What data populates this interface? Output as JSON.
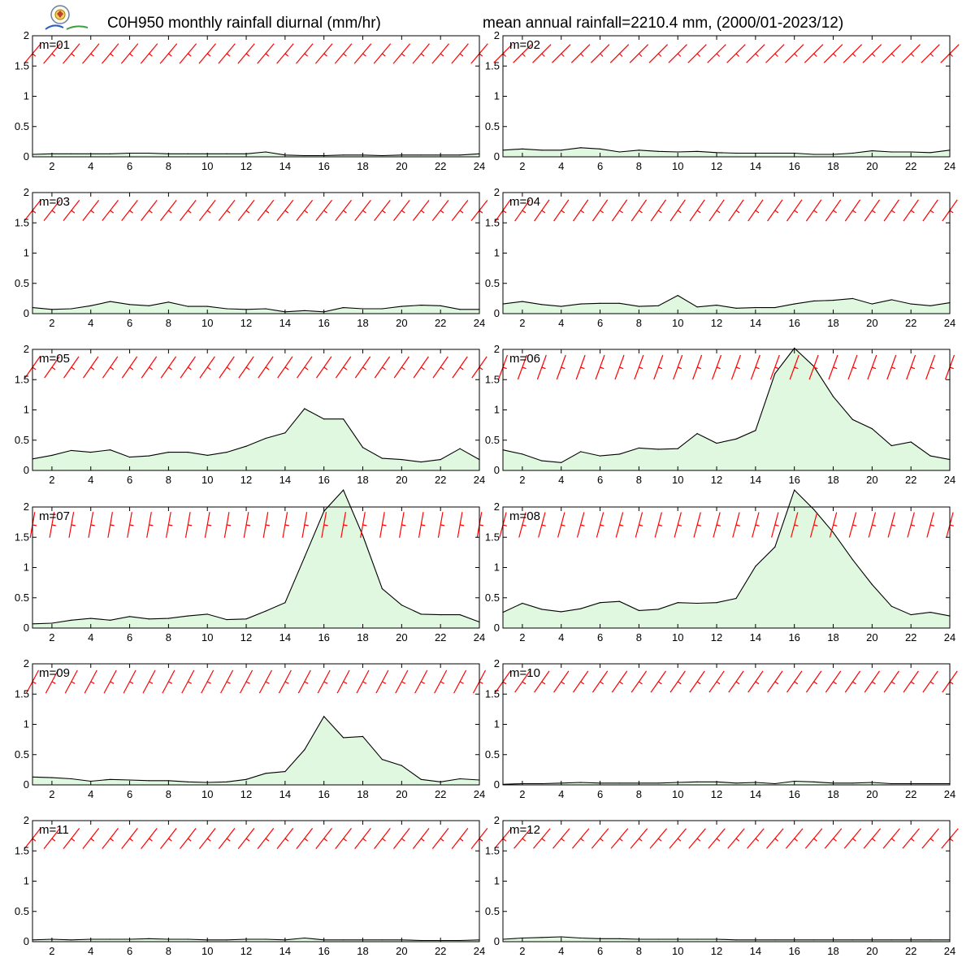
{
  "header": {
    "title_left": "C0H950 monthly rainfall diurnal (mm/hr)",
    "title_right": "mean annual rainfall=2210.4 mm, (2000/01-2023/12)"
  },
  "colors": {
    "fill": "#e0f8e0",
    "line": "#000000",
    "barb": "#ff0000"
  },
  "logo_icon": "lab-seal-logo",
  "chart_data": [
    {
      "type": "area",
      "label": "m=01",
      "x": [
        1,
        2,
        3,
        4,
        5,
        6,
        7,
        8,
        9,
        10,
        11,
        12,
        13,
        14,
        15,
        16,
        17,
        18,
        19,
        20,
        21,
        22,
        23,
        24
      ],
      "values": [
        0.04,
        0.05,
        0.05,
        0.05,
        0.05,
        0.06,
        0.06,
        0.05,
        0.05,
        0.05,
        0.05,
        0.05,
        0.08,
        0.03,
        0.02,
        0.02,
        0.03,
        0.03,
        0.02,
        0.03,
        0.03,
        0.03,
        0.03,
        0.05
      ],
      "xlim": [
        1,
        24
      ],
      "ylim": [
        0,
        2
      ],
      "xticks": [
        2,
        4,
        6,
        8,
        10,
        12,
        14,
        16,
        18,
        20,
        22,
        24
      ],
      "yticks": [
        0,
        0.5,
        1,
        1.5,
        2
      ],
      "barb_angle": -40
    },
    {
      "type": "area",
      "label": "m=02",
      "x": [
        1,
        2,
        3,
        4,
        5,
        6,
        7,
        8,
        9,
        10,
        11,
        12,
        13,
        14,
        15,
        16,
        17,
        18,
        19,
        20,
        21,
        22,
        23,
        24
      ],
      "values": [
        0.11,
        0.13,
        0.11,
        0.11,
        0.15,
        0.13,
        0.08,
        0.11,
        0.09,
        0.08,
        0.09,
        0.07,
        0.06,
        0.06,
        0.06,
        0.06,
        0.04,
        0.04,
        0.06,
        0.1,
        0.08,
        0.08,
        0.07,
        0.11
      ],
      "xlim": [
        1,
        24
      ],
      "ylim": [
        0,
        2
      ],
      "xticks": [
        2,
        4,
        6,
        8,
        10,
        12,
        14,
        16,
        18,
        20,
        22,
        24
      ],
      "yticks": [
        0,
        0.5,
        1,
        1.5,
        2
      ],
      "barb_angle": -45
    },
    {
      "type": "area",
      "label": "m=03",
      "x": [
        1,
        2,
        3,
        4,
        5,
        6,
        7,
        8,
        9,
        10,
        11,
        12,
        13,
        14,
        15,
        16,
        17,
        18,
        19,
        20,
        21,
        22,
        23,
        24
      ],
      "values": [
        0.1,
        0.07,
        0.08,
        0.13,
        0.2,
        0.15,
        0.13,
        0.19,
        0.12,
        0.12,
        0.08,
        0.07,
        0.08,
        0.03,
        0.05,
        0.03,
        0.1,
        0.08,
        0.08,
        0.12,
        0.14,
        0.13,
        0.07,
        0.07
      ],
      "xlim": [
        1,
        24
      ],
      "ylim": [
        0,
        2
      ],
      "xticks": [
        2,
        4,
        6,
        8,
        10,
        12,
        14,
        16,
        18,
        20,
        22,
        24
      ],
      "yticks": [
        0,
        0.5,
        1,
        1.5,
        2
      ],
      "barb_angle": -38
    },
    {
      "type": "area",
      "label": "m=04",
      "x": [
        1,
        2,
        3,
        4,
        5,
        6,
        7,
        8,
        9,
        10,
        11,
        12,
        13,
        14,
        15,
        16,
        17,
        18,
        19,
        20,
        21,
        22,
        23,
        24
      ],
      "values": [
        0.16,
        0.2,
        0.15,
        0.12,
        0.16,
        0.17,
        0.17,
        0.12,
        0.13,
        0.3,
        0.11,
        0.14,
        0.09,
        0.1,
        0.1,
        0.16,
        0.21,
        0.22,
        0.25,
        0.16,
        0.23,
        0.16,
        0.13,
        0.18
      ],
      "xlim": [
        1,
        24
      ],
      "ylim": [
        0,
        2
      ],
      "xticks": [
        2,
        4,
        6,
        8,
        10,
        12,
        14,
        16,
        18,
        20,
        22,
        24
      ],
      "yticks": [
        0,
        0.5,
        1,
        1.5,
        2
      ],
      "barb_angle": -35
    },
    {
      "type": "area",
      "label": "m=05",
      "x": [
        1,
        2,
        3,
        4,
        5,
        6,
        7,
        8,
        9,
        10,
        11,
        12,
        13,
        14,
        15,
        16,
        17,
        18,
        19,
        20,
        21,
        22,
        23,
        24
      ],
      "values": [
        0.19,
        0.25,
        0.33,
        0.3,
        0.34,
        0.22,
        0.24,
        0.3,
        0.3,
        0.25,
        0.3,
        0.4,
        0.53,
        0.62,
        1.02,
        0.85,
        0.85,
        0.38,
        0.2,
        0.18,
        0.14,
        0.18,
        0.36,
        0.18
      ],
      "xlim": [
        1,
        24
      ],
      "ylim": [
        0,
        2
      ],
      "xticks": [
        2,
        4,
        6,
        8,
        10,
        12,
        14,
        16,
        18,
        20,
        22,
        24
      ],
      "yticks": [
        0,
        0.5,
        1,
        1.5,
        2
      ],
      "barb_angle": -35
    },
    {
      "type": "area",
      "label": "m=06",
      "x": [
        1,
        2,
        3,
        4,
        5,
        6,
        7,
        8,
        9,
        10,
        11,
        12,
        13,
        14,
        15,
        16,
        17,
        18,
        19,
        20,
        21,
        22,
        23,
        24
      ],
      "values": [
        0.34,
        0.27,
        0.16,
        0.13,
        0.31,
        0.24,
        0.27,
        0.37,
        0.35,
        0.36,
        0.61,
        0.45,
        0.52,
        0.66,
        1.6,
        2.02,
        1.72,
        1.22,
        0.84,
        0.69,
        0.41,
        0.47,
        0.24,
        0.18
      ],
      "xlim": [
        1,
        24
      ],
      "ylim": [
        0,
        2
      ],
      "xticks": [
        2,
        4,
        6,
        8,
        10,
        12,
        14,
        16,
        18,
        20,
        22,
        24
      ],
      "yticks": [
        0,
        0.5,
        1,
        1.5,
        2
      ],
      "barb_angle": -20
    },
    {
      "type": "area",
      "label": "m=07",
      "x": [
        1,
        2,
        3,
        4,
        5,
        6,
        7,
        8,
        9,
        10,
        11,
        12,
        13,
        14,
        15,
        16,
        17,
        18,
        19,
        20,
        21,
        22,
        23,
        24
      ],
      "values": [
        0.07,
        0.08,
        0.13,
        0.16,
        0.13,
        0.19,
        0.15,
        0.16,
        0.2,
        0.23,
        0.14,
        0.15,
        0.28,
        0.42,
        1.17,
        1.93,
        2.28,
        1.53,
        0.65,
        0.38,
        0.23,
        0.22,
        0.22,
        0.1
      ],
      "xlim": [
        1,
        24
      ],
      "ylim": [
        0,
        2
      ],
      "xticks": [
        2,
        4,
        6,
        8,
        10,
        12,
        14,
        16,
        18,
        20,
        22,
        24
      ],
      "yticks": [
        0,
        0.5,
        1,
        1.5,
        2
      ],
      "barb_angle": -10
    },
    {
      "type": "area",
      "label": "m=08",
      "x": [
        1,
        2,
        3,
        4,
        5,
        6,
        7,
        8,
        9,
        10,
        11,
        12,
        13,
        14,
        15,
        16,
        17,
        18,
        19,
        20,
        21,
        22,
        23,
        24
      ],
      "values": [
        0.26,
        0.41,
        0.31,
        0.27,
        0.32,
        0.42,
        0.44,
        0.29,
        0.31,
        0.42,
        0.41,
        0.42,
        0.49,
        1.02,
        1.34,
        2.28,
        1.96,
        1.58,
        1.13,
        0.72,
        0.36,
        0.22,
        0.26,
        0.2
      ],
      "xlim": [
        1,
        24
      ],
      "ylim": [
        0,
        2
      ],
      "xticks": [
        2,
        4,
        6,
        8,
        10,
        12,
        14,
        16,
        18,
        20,
        22,
        24
      ],
      "yticks": [
        0,
        0.5,
        1,
        1.5,
        2
      ],
      "barb_angle": -15
    },
    {
      "type": "area",
      "label": "m=09",
      "x": [
        1,
        2,
        3,
        4,
        5,
        6,
        7,
        8,
        9,
        10,
        11,
        12,
        13,
        14,
        15,
        16,
        17,
        18,
        19,
        20,
        21,
        22,
        23,
        24
      ],
      "values": [
        0.13,
        0.12,
        0.1,
        0.06,
        0.09,
        0.08,
        0.07,
        0.07,
        0.05,
        0.04,
        0.05,
        0.09,
        0.19,
        0.22,
        0.58,
        1.13,
        0.78,
        0.8,
        0.42,
        0.32,
        0.09,
        0.05,
        0.1,
        0.08
      ],
      "xlim": [
        1,
        24
      ],
      "ylim": [
        0,
        2
      ],
      "xticks": [
        2,
        4,
        6,
        8,
        10,
        12,
        14,
        16,
        18,
        20,
        22,
        24
      ],
      "yticks": [
        0,
        0.5,
        1,
        1.5,
        2
      ],
      "barb_angle": -28
    },
    {
      "type": "area",
      "label": "m=10",
      "x": [
        1,
        2,
        3,
        4,
        5,
        6,
        7,
        8,
        9,
        10,
        11,
        12,
        13,
        14,
        15,
        16,
        17,
        18,
        19,
        20,
        21,
        22,
        23,
        24
      ],
      "values": [
        0.01,
        0.02,
        0.02,
        0.03,
        0.04,
        0.03,
        0.03,
        0.03,
        0.03,
        0.04,
        0.05,
        0.05,
        0.03,
        0.04,
        0.02,
        0.06,
        0.05,
        0.03,
        0.03,
        0.04,
        0.02,
        0.02,
        0.02,
        0.02
      ],
      "xlim": [
        1,
        24
      ],
      "ylim": [
        0,
        2
      ],
      "xticks": [
        2,
        4,
        6,
        8,
        10,
        12,
        14,
        16,
        18,
        20,
        22,
        24
      ],
      "yticks": [
        0,
        0.5,
        1,
        1.5,
        2
      ],
      "barb_angle": -35
    },
    {
      "type": "area",
      "label": "m=11",
      "x": [
        1,
        2,
        3,
        4,
        5,
        6,
        7,
        8,
        9,
        10,
        11,
        12,
        13,
        14,
        15,
        16,
        17,
        18,
        19,
        20,
        21,
        22,
        23,
        24
      ],
      "values": [
        0.03,
        0.04,
        0.03,
        0.04,
        0.04,
        0.04,
        0.05,
        0.04,
        0.04,
        0.03,
        0.03,
        0.04,
        0.04,
        0.03,
        0.06,
        0.03,
        0.03,
        0.03,
        0.03,
        0.03,
        0.02,
        0.02,
        0.02,
        0.03
      ],
      "xlim": [
        1,
        24
      ],
      "ylim": [
        0,
        2
      ],
      "xticks": [
        2,
        4,
        6,
        8,
        10,
        12,
        14,
        16,
        18,
        20,
        22,
        24
      ],
      "yticks": [
        0,
        0.5,
        1,
        1.5,
        2
      ],
      "barb_angle": -38
    },
    {
      "type": "area",
      "label": "m=12",
      "x": [
        1,
        2,
        3,
        4,
        5,
        6,
        7,
        8,
        9,
        10,
        11,
        12,
        13,
        14,
        15,
        16,
        17,
        18,
        19,
        20,
        21,
        22,
        23,
        24
      ],
      "values": [
        0.04,
        0.06,
        0.07,
        0.08,
        0.06,
        0.05,
        0.05,
        0.04,
        0.04,
        0.04,
        0.04,
        0.04,
        0.03,
        0.03,
        0.03,
        0.03,
        0.03,
        0.03,
        0.03,
        0.03,
        0.03,
        0.03,
        0.03,
        0.03
      ],
      "xlim": [
        1,
        24
      ],
      "ylim": [
        0,
        2
      ],
      "xticks": [
        2,
        4,
        6,
        8,
        10,
        12,
        14,
        16,
        18,
        20,
        22,
        24
      ],
      "yticks": [
        0,
        0.5,
        1,
        1.5,
        2
      ],
      "barb_angle": -40
    }
  ]
}
